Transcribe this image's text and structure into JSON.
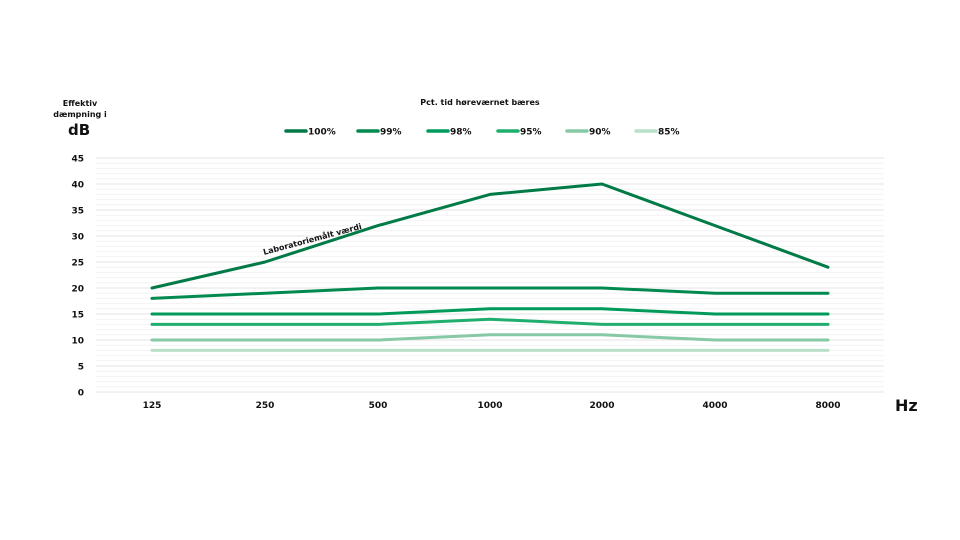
{
  "chart_data": {
    "type": "line",
    "ylabel_line1": "Effektiv",
    "ylabel_line2": "dæmpning i",
    "ylabel_unit": "dB",
    "legend_title": "Pct. tid høreværnet bæres",
    "xunit": "Hz",
    "categories": [
      "125",
      "250",
      "500",
      "1000",
      "2000",
      "4000",
      "8000"
    ],
    "yticks": [
      0,
      5,
      10,
      15,
      20,
      25,
      30,
      35,
      40,
      45
    ],
    "ylim": [
      0,
      45
    ],
    "grid": true,
    "annotation": "Laboratoriemålt værdi",
    "series": [
      {
        "name": "100%",
        "color": "#007a47",
        "values": [
          20,
          25,
          32,
          38,
          40,
          32,
          24
        ]
      },
      {
        "name": "99%",
        "color": "#008a50",
        "values": [
          18,
          19,
          20,
          20,
          20,
          19,
          19
        ]
      },
      {
        "name": "98%",
        "color": "#009a5a",
        "values": [
          15,
          15,
          15,
          16,
          16,
          15,
          15
        ]
      },
      {
        "name": "95%",
        "color": "#1fae6d",
        "values": [
          13,
          13,
          13,
          14,
          13,
          13,
          13
        ]
      },
      {
        "name": "90%",
        "color": "#86c9a5",
        "values": [
          10,
          10,
          10,
          11,
          11,
          10,
          10
        ]
      },
      {
        "name": "85%",
        "color": "#b9e0c9",
        "values": [
          8,
          8,
          8,
          8,
          8,
          8,
          8
        ]
      }
    ]
  }
}
